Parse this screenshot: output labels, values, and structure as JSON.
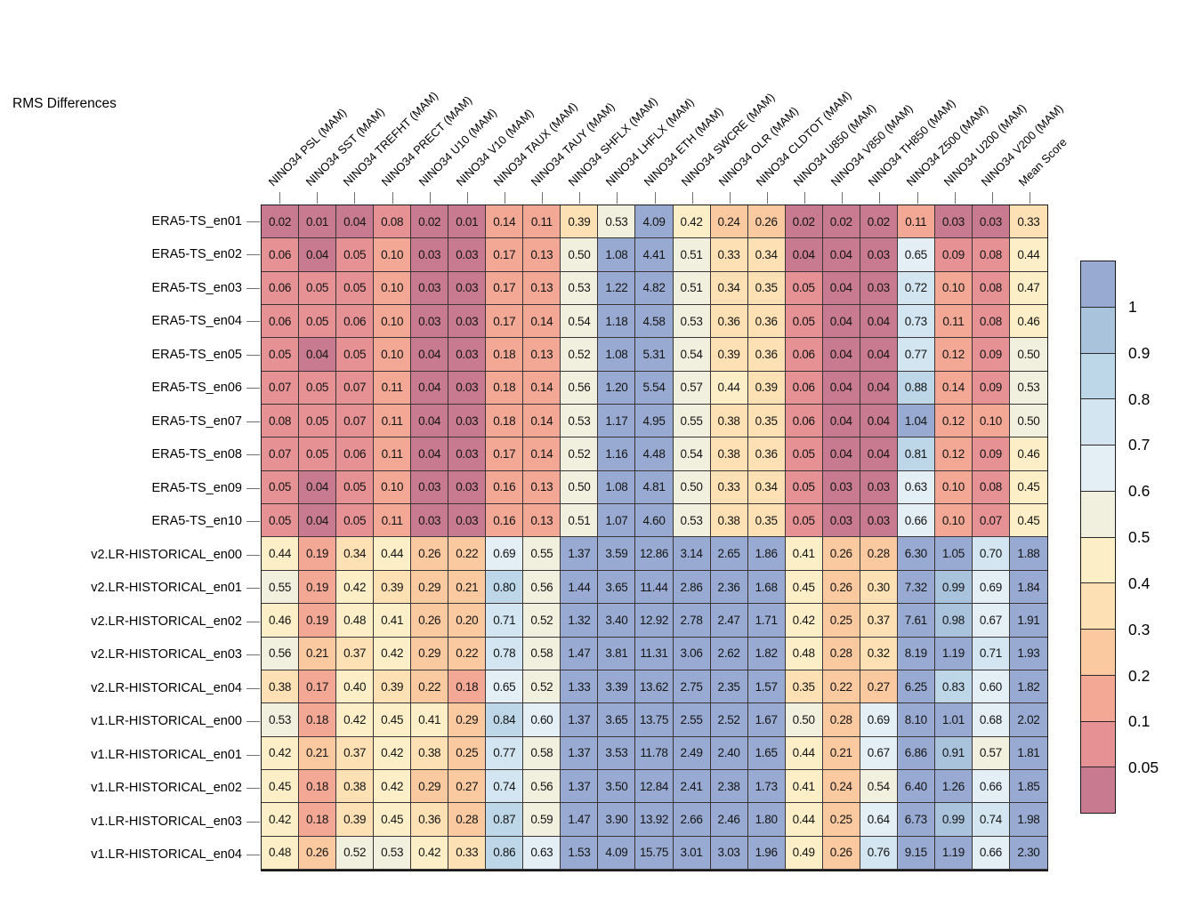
{
  "title": "RMS Differences",
  "chart_data": {
    "type": "heatmap",
    "columns": [
      "NINO34 PSL (MAM)",
      "NINO34 SST (MAM)",
      "NINO34 TREFHT (MAM)",
      "NINO34 PRECT (MAM)",
      "NINO34 U10 (MAM)",
      "NINO34 V10 (MAM)",
      "NINO34 TAUX (MAM)",
      "NINO34 TAUY (MAM)",
      "NINO34 SHFLX (MAM)",
      "NINO34 LHFLX (MAM)",
      "NINO34 ETH (MAM)",
      "NINO34 SWCRE (MAM)",
      "NINO34 OLR (MAM)",
      "NINO34 CLDTOT (MAM)",
      "NINO34 U850 (MAM)",
      "NINO34 V850 (MAM)",
      "NINO34 TH850 (MAM)",
      "NINO34 Z500 (MAM)",
      "NINO34 U200 (MAM)",
      "NINO34 V200 (MAM)",
      "Mean Score"
    ],
    "rows": [
      {
        "label": "ERA5-TS_en01",
        "values": [
          "0.02",
          "0.01",
          "0.04",
          "0.08",
          "0.02",
          "0.01",
          "0.14",
          "0.11",
          "0.39",
          "0.53",
          "4.09",
          "0.42",
          "0.24",
          "0.26",
          "0.02",
          "0.02",
          "0.02",
          "0.11",
          "0.03",
          "0.03",
          "0.33"
        ]
      },
      {
        "label": "ERA5-TS_en02",
        "values": [
          "0.06",
          "0.04",
          "0.05",
          "0.10",
          "0.03",
          "0.03",
          "0.17",
          "0.13",
          "0.50",
          "1.08",
          "4.41",
          "0.51",
          "0.33",
          "0.34",
          "0.04",
          "0.04",
          "0.03",
          "0.65",
          "0.09",
          "0.08",
          "0.44"
        ]
      },
      {
        "label": "ERA5-TS_en03",
        "values": [
          "0.06",
          "0.05",
          "0.05",
          "0.10",
          "0.03",
          "0.03",
          "0.17",
          "0.13",
          "0.53",
          "1.22",
          "4.82",
          "0.51",
          "0.34",
          "0.35",
          "0.05",
          "0.04",
          "0.03",
          "0.72",
          "0.10",
          "0.08",
          "0.47"
        ]
      },
      {
        "label": "ERA5-TS_en04",
        "values": [
          "0.06",
          "0.05",
          "0.06",
          "0.10",
          "0.03",
          "0.03",
          "0.17",
          "0.14",
          "0.54",
          "1.18",
          "4.58",
          "0.53",
          "0.36",
          "0.36",
          "0.05",
          "0.04",
          "0.04",
          "0.73",
          "0.11",
          "0.08",
          "0.46"
        ]
      },
      {
        "label": "ERA5-TS_en05",
        "values": [
          "0.05",
          "0.04",
          "0.05",
          "0.10",
          "0.04",
          "0.03",
          "0.18",
          "0.13",
          "0.52",
          "1.08",
          "5.31",
          "0.54",
          "0.39",
          "0.36",
          "0.06",
          "0.04",
          "0.04",
          "0.77",
          "0.12",
          "0.09",
          "0.50"
        ]
      },
      {
        "label": "ERA5-TS_en06",
        "values": [
          "0.07",
          "0.05",
          "0.07",
          "0.11",
          "0.04",
          "0.03",
          "0.18",
          "0.14",
          "0.56",
          "1.20",
          "5.54",
          "0.57",
          "0.44",
          "0.39",
          "0.06",
          "0.04",
          "0.04",
          "0.88",
          "0.14",
          "0.09",
          "0.53"
        ]
      },
      {
        "label": "ERA5-TS_en07",
        "values": [
          "0.08",
          "0.05",
          "0.07",
          "0.11",
          "0.04",
          "0.03",
          "0.18",
          "0.14",
          "0.53",
          "1.17",
          "4.95",
          "0.55",
          "0.38",
          "0.35",
          "0.06",
          "0.04",
          "0.04",
          "1.04",
          "0.12",
          "0.10",
          "0.50"
        ]
      },
      {
        "label": "ERA5-TS_en08",
        "values": [
          "0.07",
          "0.05",
          "0.06",
          "0.11",
          "0.04",
          "0.03",
          "0.17",
          "0.14",
          "0.52",
          "1.16",
          "4.48",
          "0.54",
          "0.38",
          "0.36",
          "0.05",
          "0.04",
          "0.04",
          "0.81",
          "0.12",
          "0.09",
          "0.46"
        ]
      },
      {
        "label": "ERA5-TS_en09",
        "values": [
          "0.05",
          "0.04",
          "0.05",
          "0.10",
          "0.03",
          "0.03",
          "0.16",
          "0.13",
          "0.50",
          "1.08",
          "4.81",
          "0.50",
          "0.33",
          "0.34",
          "0.05",
          "0.03",
          "0.03",
          "0.63",
          "0.10",
          "0.08",
          "0.45"
        ]
      },
      {
        "label": "ERA5-TS_en10",
        "values": [
          "0.05",
          "0.04",
          "0.05",
          "0.11",
          "0.03",
          "0.03",
          "0.16",
          "0.13",
          "0.51",
          "1.07",
          "4.60",
          "0.53",
          "0.38",
          "0.35",
          "0.05",
          "0.03",
          "0.03",
          "0.66",
          "0.10",
          "0.07",
          "0.45"
        ]
      },
      {
        "label": "v2.LR-HISTORICAL_en00",
        "values": [
          "0.44",
          "0.19",
          "0.34",
          "0.44",
          "0.26",
          "0.22",
          "0.69",
          "0.55",
          "1.37",
          "3.59",
          "12.86",
          "3.14",
          "2.65",
          "1.86",
          "0.41",
          "0.26",
          "0.28",
          "6.30",
          "1.05",
          "0.70",
          "1.88"
        ]
      },
      {
        "label": "v2.LR-HISTORICAL_en01",
        "values": [
          "0.55",
          "0.19",
          "0.42",
          "0.39",
          "0.29",
          "0.21",
          "0.80",
          "0.56",
          "1.44",
          "3.65",
          "11.44",
          "2.86",
          "2.36",
          "1.68",
          "0.45",
          "0.26",
          "0.30",
          "7.32",
          "0.99",
          "0.69",
          "1.84"
        ]
      },
      {
        "label": "v2.LR-HISTORICAL_en02",
        "values": [
          "0.46",
          "0.19",
          "0.48",
          "0.41",
          "0.26",
          "0.20",
          "0.71",
          "0.52",
          "1.32",
          "3.40",
          "12.92",
          "2.78",
          "2.47",
          "1.71",
          "0.42",
          "0.25",
          "0.37",
          "7.61",
          "0.98",
          "0.67",
          "1.91"
        ]
      },
      {
        "label": "v2.LR-HISTORICAL_en03",
        "values": [
          "0.56",
          "0.21",
          "0.37",
          "0.42",
          "0.29",
          "0.22",
          "0.78",
          "0.58",
          "1.47",
          "3.81",
          "11.31",
          "3.06",
          "2.62",
          "1.82",
          "0.48",
          "0.28",
          "0.32",
          "8.19",
          "1.19",
          "0.71",
          "1.93"
        ]
      },
      {
        "label": "v2.LR-HISTORICAL_en04",
        "values": [
          "0.38",
          "0.17",
          "0.40",
          "0.39",
          "0.22",
          "0.18",
          "0.65",
          "0.52",
          "1.33",
          "3.39",
          "13.62",
          "2.75",
          "2.35",
          "1.57",
          "0.35",
          "0.22",
          "0.27",
          "6.25",
          "0.83",
          "0.60",
          "1.82"
        ]
      },
      {
        "label": "v1.LR-HISTORICAL_en00",
        "values": [
          "0.53",
          "0.18",
          "0.42",
          "0.45",
          "0.41",
          "0.29",
          "0.84",
          "0.60",
          "1.37",
          "3.65",
          "13.75",
          "2.55",
          "2.52",
          "1.67",
          "0.50",
          "0.28",
          "0.69",
          "8.10",
          "1.01",
          "0.68",
          "2.02"
        ]
      },
      {
        "label": "v1.LR-HISTORICAL_en01",
        "values": [
          "0.42",
          "0.21",
          "0.37",
          "0.42",
          "0.38",
          "0.25",
          "0.77",
          "0.58",
          "1.37",
          "3.53",
          "11.78",
          "2.49",
          "2.40",
          "1.65",
          "0.44",
          "0.21",
          "0.67",
          "6.86",
          "0.91",
          "0.57",
          "1.81"
        ]
      },
      {
        "label": "v1.LR-HISTORICAL_en02",
        "values": [
          "0.45",
          "0.18",
          "0.38",
          "0.42",
          "0.29",
          "0.27",
          "0.74",
          "0.56",
          "1.37",
          "3.50",
          "12.84",
          "2.41",
          "2.38",
          "1.73",
          "0.41",
          "0.24",
          "0.54",
          "6.40",
          "1.26",
          "0.66",
          "1.85"
        ]
      },
      {
        "label": "v1.LR-HISTORICAL_en03",
        "values": [
          "0.42",
          "0.18",
          "0.39",
          "0.45",
          "0.36",
          "0.28",
          "0.87",
          "0.59",
          "1.47",
          "3.90",
          "13.92",
          "2.66",
          "2.46",
          "1.80",
          "0.44",
          "0.25",
          "0.64",
          "6.73",
          "0.99",
          "0.74",
          "1.98"
        ]
      },
      {
        "label": "v1.LR-HISTORICAL_en04",
        "values": [
          "0.48",
          "0.26",
          "0.52",
          "0.53",
          "0.42",
          "0.33",
          "0.86",
          "0.63",
          "1.53",
          "4.09",
          "15.75",
          "3.01",
          "3.03",
          "1.96",
          "0.49",
          "0.26",
          "0.76",
          "9.15",
          "1.19",
          "0.66",
          "2.30"
        ]
      }
    ],
    "colorbar": {
      "tick_labels": [
        "1",
        "0.9",
        "0.8",
        "0.7",
        "0.6",
        "0.5",
        "0.4",
        "0.3",
        "0.2",
        "0.1",
        "0.05"
      ],
      "thresholds": [
        0.05,
        0.1,
        0.2,
        0.3,
        0.4,
        0.5,
        0.6,
        0.7,
        0.8,
        0.9,
        1.0
      ],
      "colors_low_to_high": [
        "#c87b90",
        "#e69295",
        "#f2a894",
        "#fbc9a0",
        "#fde0b3",
        "#fcefc7",
        "#f1f0de",
        "#e3eff5",
        "#d2e5f0",
        "#bdd7e8",
        "#a9c3dd",
        "#99aad2"
      ]
    },
    "legend_position": "right",
    "grid": true
  }
}
